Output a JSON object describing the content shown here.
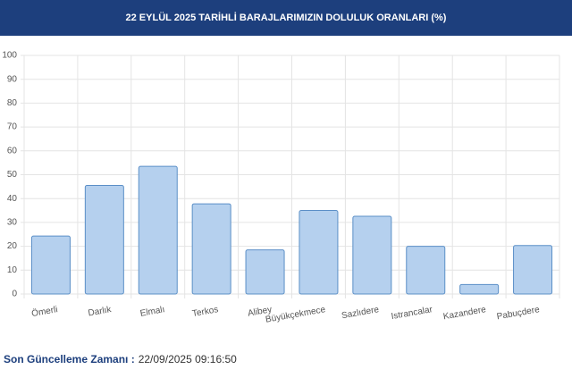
{
  "chart_data": {
    "type": "bar",
    "title": "22 EYLÜL 2025 TARİHLİ BARAJLARIMIZIN DOLULUK ORANLARI (%)",
    "categories": [
      "Ömerli",
      "Darlık",
      "Elmalı",
      "Terkos",
      "Alibey",
      "Büyükçekmece",
      "Sazlıdere",
      "Istrancalar",
      "Kazandere",
      "Pabuçdere"
    ],
    "values": [
      24.3,
      45.5,
      53.5,
      37.8,
      18.5,
      35,
      32.6,
      20,
      4,
      20.3
    ],
    "color": "#b5d0ee",
    "edge_color": "#5b8fc7",
    "ylim": [
      0,
      100
    ],
    "yticks": [
      0,
      10,
      20,
      30,
      40,
      50,
      60,
      70,
      80,
      90,
      100
    ],
    "grid": true
  },
  "footer": {
    "label": "Son Güncelleme Zamanı :",
    "value": "22/09/2025 09:16:50"
  }
}
